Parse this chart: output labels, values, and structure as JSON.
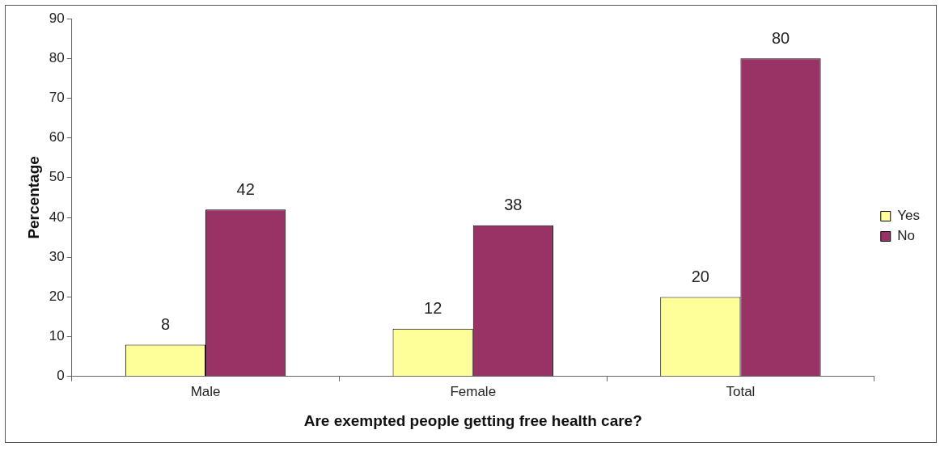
{
  "chart_data": {
    "type": "bar",
    "xlabel": "Are exempted people getting free health care?",
    "ylabel": "Percentage",
    "categories": [
      "Male",
      "Female",
      "Total"
    ],
    "series": [
      {
        "name": "Yes",
        "color": "#ffff99",
        "values": [
          8,
          12,
          20
        ]
      },
      {
        "name": "No",
        "color": "#993366",
        "values": [
          42,
          38,
          80
        ]
      }
    ],
    "ylim": [
      0,
      90
    ],
    "yticks": [
      0,
      10,
      20,
      30,
      40,
      50,
      60,
      70,
      80,
      90
    ],
    "grid": false,
    "legend": "right",
    "data_labels": true
  }
}
